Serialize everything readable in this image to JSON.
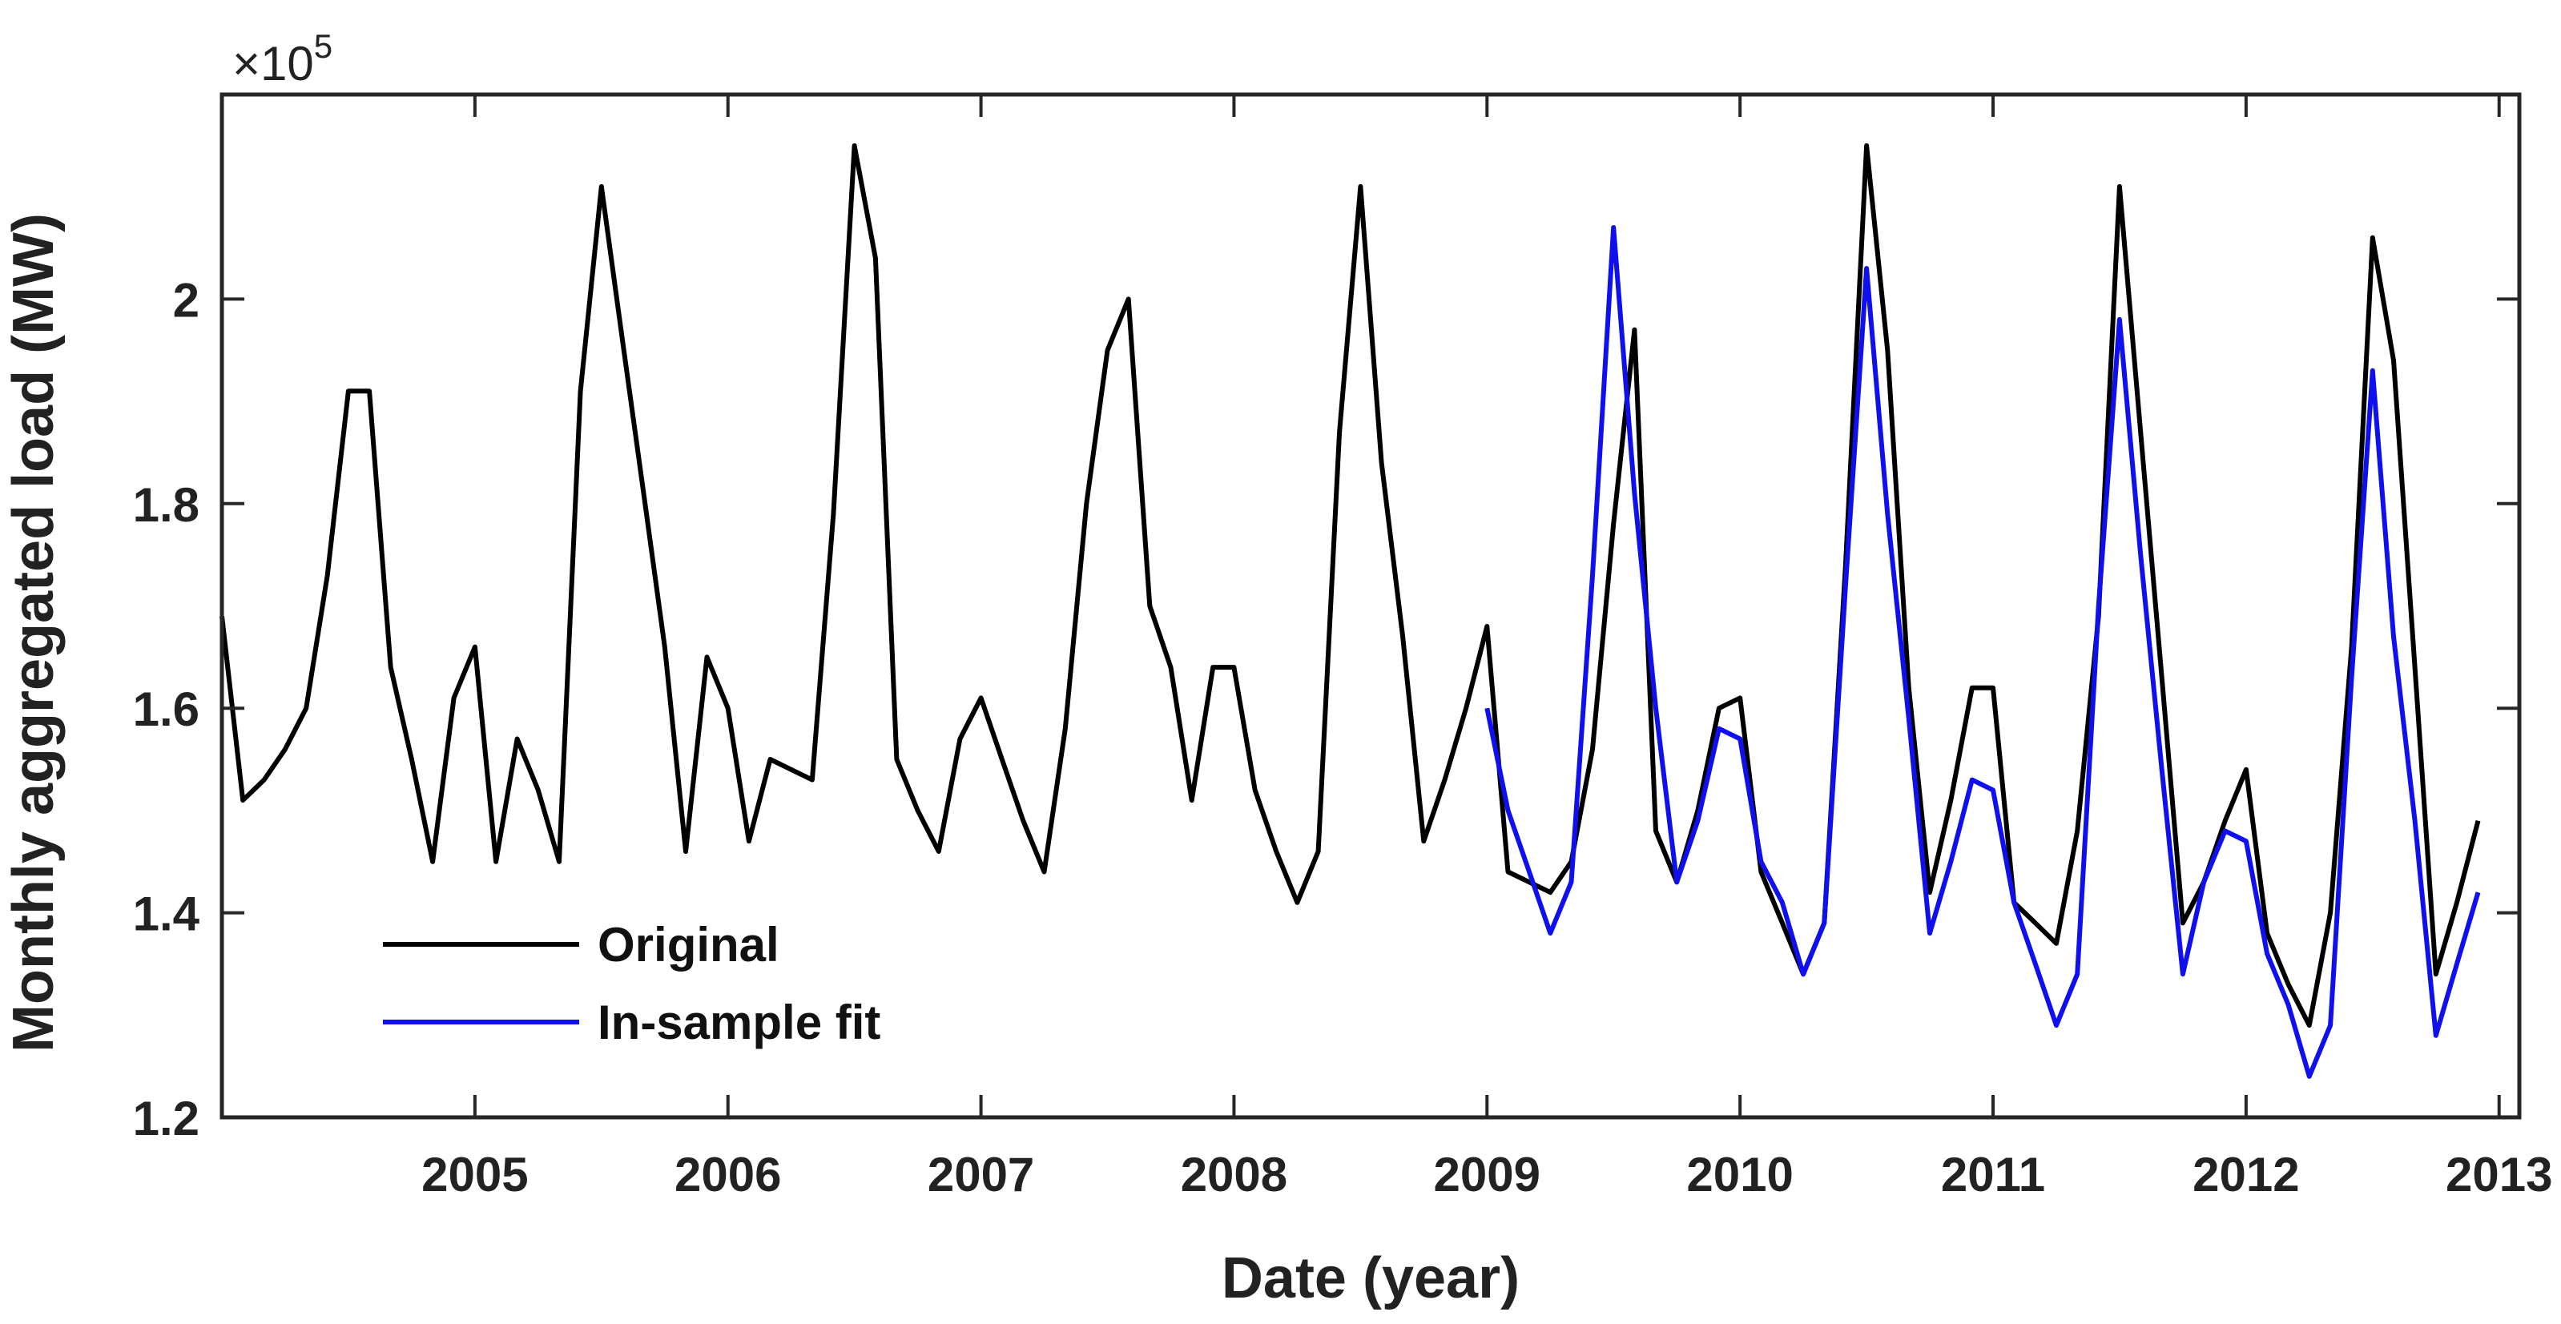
{
  "chart_data": {
    "type": "line",
    "title": "",
    "xlabel": "Date (year)",
    "ylabel": "Monthly aggregated load (MW)",
    "y_exponent_label": "×10",
    "y_exponent_power": "5",
    "xlim": [
      2004.0,
      2013.08
    ],
    "ylim": [
      1.2,
      2.2
    ],
    "x_ticks": [
      2005,
      2006,
      2007,
      2008,
      2009,
      2010,
      2011,
      2012,
      2013
    ],
    "x_tick_labels": [
      "2005",
      "2006",
      "2007",
      "2008",
      "2009",
      "2010",
      "2011",
      "2012",
      "2013"
    ],
    "y_ticks": [
      1.2,
      1.4,
      1.6,
      1.8,
      2.0
    ],
    "y_tick_labels": [
      "1.2",
      "1.4",
      "1.6",
      "1.8",
      "2"
    ],
    "legend_location": "lower-left",
    "grid": false,
    "series": [
      {
        "name": "Original",
        "color": "#000000",
        "x": [
          2004.0,
          2004.083,
          2004.167,
          2004.25,
          2004.333,
          2004.417,
          2004.5,
          2004.583,
          2004.667,
          2004.75,
          2004.833,
          2004.917,
          2005.0,
          2005.083,
          2005.167,
          2005.25,
          2005.333,
          2005.417,
          2005.5,
          2005.583,
          2005.667,
          2005.75,
          2005.833,
          2005.917,
          2006.0,
          2006.083,
          2006.167,
          2006.25,
          2006.333,
          2006.417,
          2006.5,
          2006.583,
          2006.667,
          2006.75,
          2006.833,
          2006.917,
          2007.0,
          2007.083,
          2007.167,
          2007.25,
          2007.333,
          2007.417,
          2007.5,
          2007.583,
          2007.667,
          2007.75,
          2007.833,
          2007.917,
          2008.0,
          2008.083,
          2008.167,
          2008.25,
          2008.333,
          2008.417,
          2008.5,
          2008.583,
          2008.667,
          2008.75,
          2008.833,
          2008.917,
          2009.0,
          2009.083,
          2009.167,
          2009.25,
          2009.333,
          2009.417,
          2009.5,
          2009.583,
          2009.667,
          2009.75,
          2009.833,
          2009.917,
          2010.0,
          2010.083,
          2010.167,
          2010.25,
          2010.333,
          2010.417,
          2010.5,
          2010.583,
          2010.667,
          2010.75,
          2010.833,
          2010.917,
          2011.0,
          2011.083,
          2011.167,
          2011.25,
          2011.333,
          2011.417,
          2011.5,
          2011.583,
          2011.667,
          2011.75,
          2011.833,
          2011.917,
          2012.0,
          2012.083,
          2012.167,
          2012.25,
          2012.333,
          2012.417,
          2012.5,
          2012.583,
          2012.667,
          2012.75,
          2012.833,
          2012.917
        ],
        "values": [
          1.69,
          1.51,
          1.53,
          1.56,
          1.6,
          1.73,
          1.91,
          1.91,
          1.64,
          1.55,
          1.45,
          1.61,
          1.66,
          1.45,
          1.57,
          1.52,
          1.45,
          1.91,
          2.11,
          1.96,
          1.81,
          1.66,
          1.46,
          1.65,
          1.6,
          1.47,
          1.55,
          1.54,
          1.53,
          1.79,
          2.15,
          2.04,
          1.55,
          1.5,
          1.46,
          1.57,
          1.61,
          1.55,
          1.49,
          1.44,
          1.58,
          1.8,
          1.95,
          2.0,
          1.7,
          1.64,
          1.51,
          1.64,
          1.64,
          1.52,
          1.46,
          1.41,
          1.46,
          1.87,
          2.11,
          1.84,
          1.67,
          1.47,
          1.53,
          1.6,
          1.68,
          1.44,
          1.43,
          1.42,
          1.45,
          1.56,
          1.78,
          1.97,
          1.48,
          1.43,
          1.5,
          1.6,
          1.61,
          1.44,
          1.39,
          1.34,
          1.39,
          1.74,
          2.15,
          1.95,
          1.62,
          1.42,
          1.51,
          1.62,
          1.62,
          1.41,
          1.39,
          1.37,
          1.48,
          1.69,
          2.11,
          1.87,
          1.63,
          1.39,
          1.43,
          1.49,
          1.54,
          1.38,
          1.33,
          1.29,
          1.4,
          1.66,
          2.06,
          1.94,
          1.64,
          1.34,
          1.41,
          1.49
        ]
      },
      {
        "name": "In-sample fit",
        "color": "#1010ee",
        "x": [
          2009.0,
          2009.083,
          2009.167,
          2009.25,
          2009.333,
          2009.417,
          2009.5,
          2009.583,
          2009.667,
          2009.75,
          2009.833,
          2009.917,
          2010.0,
          2010.083,
          2010.167,
          2010.25,
          2010.333,
          2010.417,
          2010.5,
          2010.583,
          2010.667,
          2010.75,
          2010.833,
          2010.917,
          2011.0,
          2011.083,
          2011.167,
          2011.25,
          2011.333,
          2011.417,
          2011.5,
          2011.583,
          2011.667,
          2011.75,
          2011.833,
          2011.917,
          2012.0,
          2012.083,
          2012.167,
          2012.25,
          2012.333,
          2012.417,
          2012.5,
          2012.583,
          2012.667,
          2012.75,
          2012.833,
          2012.917
        ],
        "values": [
          1.6,
          1.5,
          1.44,
          1.38,
          1.43,
          1.73,
          2.07,
          1.81,
          1.6,
          1.43,
          1.49,
          1.58,
          1.57,
          1.45,
          1.41,
          1.34,
          1.39,
          1.72,
          2.03,
          1.79,
          1.59,
          1.38,
          1.45,
          1.53,
          1.52,
          1.41,
          1.35,
          1.29,
          1.34,
          1.7,
          1.98,
          1.75,
          1.54,
          1.34,
          1.43,
          1.48,
          1.47,
          1.36,
          1.31,
          1.24,
          1.29,
          1.63,
          1.93,
          1.67,
          1.49,
          1.28,
          1.35,
          1.42
        ]
      }
    ]
  }
}
